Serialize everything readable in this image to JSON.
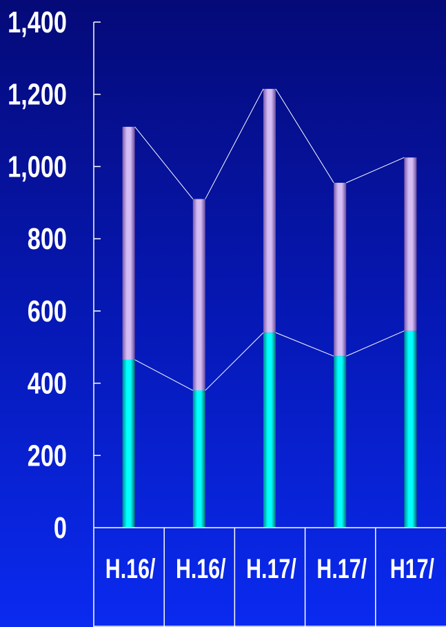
{
  "chart_data": {
    "type": "bar",
    "stacked": true,
    "categories": [
      "H.16/",
      "H.16/",
      "H.17/",
      "H.17/",
      "H17/"
    ],
    "series": [
      {
        "color": "#00e0e0",
        "values": [
          465,
          380,
          540,
          475,
          545
        ]
      },
      {
        "color": "#b89ae0",
        "values": [
          645,
          530,
          675,
          480,
          480
        ]
      }
    ],
    "ylim": [
      0,
      1400
    ],
    "yticks": [
      "0",
      "200",
      "400",
      "600",
      "800",
      "1,000",
      "1,200",
      "1,400"
    ],
    "ytick_values": [
      0,
      200,
      400,
      600,
      800,
      1000,
      1200,
      1400
    ],
    "series_lines": true,
    "grid": false,
    "legend": "none",
    "colors": {
      "axis": "#ffffff",
      "line": "#ffffff"
    }
  }
}
